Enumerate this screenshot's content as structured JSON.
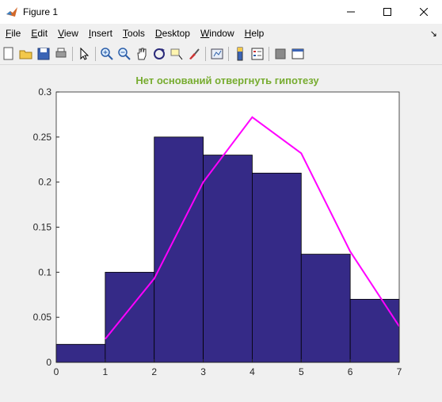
{
  "window": {
    "title": "Figure 1"
  },
  "menu": [
    {
      "label": "File",
      "u": "F",
      "rest": "ile"
    },
    {
      "label": "Edit",
      "u": "E",
      "rest": "dit"
    },
    {
      "label": "View",
      "u": "V",
      "rest": "iew"
    },
    {
      "label": "Insert",
      "u": "I",
      "rest": "nsert"
    },
    {
      "label": "Tools",
      "u": "T",
      "rest": "ools"
    },
    {
      "label": "Desktop",
      "u": "D",
      "rest": "esktop"
    },
    {
      "label": "Window",
      "u": "W",
      "rest": "indow"
    },
    {
      "label": "Help",
      "u": "H",
      "rest": "elp"
    }
  ],
  "toolbar_icons": [
    "new-figure-icon",
    "open-file-icon",
    "save-icon",
    "print-icon",
    "edit-plot-icon",
    "zoom-in-icon",
    "zoom-out-icon",
    "pan-icon",
    "rotate-3d-icon",
    "data-cursor-icon",
    "brush-icon",
    "link-plot-icon",
    "colorbar-icon",
    "legend-icon",
    "hide-plot-tools-icon",
    "show-plot-tools-icon"
  ],
  "colors": {
    "bars": "#352a87",
    "line": "#ff00ff",
    "title": "#77ac30"
  },
  "chart_data": {
    "type": "bar",
    "title": "Нет оснований отвергнуть гипотезу",
    "xlabel": "",
    "ylabel": "",
    "xlim": [
      0,
      7
    ],
    "ylim": [
      0,
      0.3
    ],
    "xticks": [
      "0",
      "1",
      "2",
      "3",
      "4",
      "5",
      "6",
      "7"
    ],
    "yticks": [
      "0",
      "0.05",
      "0.1",
      "0.15",
      "0.2",
      "0.25",
      "0.3"
    ],
    "bars": [
      {
        "x0": 0,
        "x1": 1,
        "value": 0.02
      },
      {
        "x0": 1,
        "x1": 2,
        "value": 0.1
      },
      {
        "x0": 2,
        "x1": 3,
        "value": 0.25
      },
      {
        "x0": 3,
        "x1": 4,
        "value": 0.23
      },
      {
        "x0": 4,
        "x1": 5,
        "value": 0.21
      },
      {
        "x0": 5,
        "x1": 6,
        "value": 0.12
      },
      {
        "x0": 6,
        "x1": 7,
        "value": 0.07
      }
    ],
    "line": {
      "x": [
        1,
        2,
        3,
        4,
        5,
        6,
        7
      ],
      "y": [
        0.026,
        0.093,
        0.2,
        0.272,
        0.232,
        0.123,
        0.04
      ]
    },
    "grid": false
  }
}
